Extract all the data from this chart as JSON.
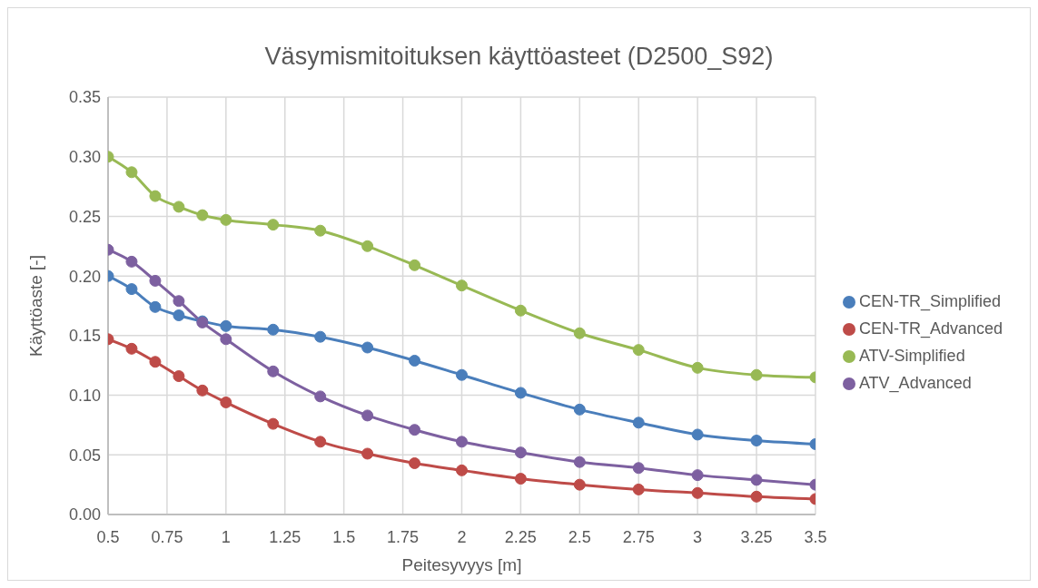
{
  "chart_data": {
    "type": "line",
    "title": "Väsymismitoituksen käyttöasteet (D2500_S92)",
    "xlabel": "Peitesyvyys [m]",
    "ylabel": "Käyttöaste [-]",
    "x": [
      0.5,
      0.6,
      0.7,
      0.8,
      0.9,
      1,
      1.2,
      1.4,
      1.6,
      1.8,
      2,
      2.25,
      2.5,
      2.75,
      3,
      3.25,
      3.5
    ],
    "series": [
      {
        "name": "CEN-TR_Simplified",
        "color": "#4a7ebb",
        "values": [
          0.2,
          0.189,
          0.174,
          0.167,
          0.162,
          0.158,
          0.155,
          0.149,
          0.14,
          0.129,
          0.117,
          0.102,
          0.088,
          0.077,
          0.067,
          0.062,
          0.059
        ]
      },
      {
        "name": "CEN-TR_Advanced",
        "color": "#be4b48",
        "values": [
          0.147,
          0.139,
          0.128,
          0.116,
          0.104,
          0.094,
          0.076,
          0.061,
          0.051,
          0.043,
          0.037,
          0.03,
          0.025,
          0.021,
          0.018,
          0.015,
          0.013
        ]
      },
      {
        "name": "ATV-Simplified",
        "color": "#98b954",
        "values": [
          0.3,
          0.287,
          0.267,
          0.258,
          0.251,
          0.247,
          0.243,
          0.238,
          0.225,
          0.209,
          0.192,
          0.171,
          0.152,
          0.138,
          0.123,
          0.117,
          0.115
        ]
      },
      {
        "name": "ATV_Advanced",
        "color": "#7d60a0",
        "values": [
          0.222,
          0.212,
          0.196,
          0.179,
          0.161,
          0.147,
          0.12,
          0.099,
          0.083,
          0.071,
          0.061,
          0.052,
          0.044,
          0.039,
          0.033,
          0.029,
          0.025
        ]
      }
    ],
    "xlim": [
      0.5,
      3.5
    ],
    "xticks": [
      0.5,
      0.75,
      1,
      1.25,
      1.5,
      1.75,
      2,
      2.25,
      2.5,
      2.75,
      3,
      3.25,
      3.5
    ],
    "ylim": [
      0,
      0.35
    ],
    "yticks": [
      {
        "value": 0,
        "label": "0.00"
      },
      {
        "value": 0.05,
        "label": "0.05"
      },
      {
        "value": 0.1,
        "label": "0.10"
      },
      {
        "value": 0.15,
        "label": "0.15"
      },
      {
        "value": 0.2,
        "label": "0.20"
      },
      {
        "value": 0.25,
        "label": "0.25"
      },
      {
        "value": 0.3,
        "label": "0.30"
      },
      {
        "value": 0.35,
        "label": "0.35"
      }
    ],
    "grid": true,
    "legend": "right",
    "marker": "circle",
    "line_style": "solid"
  }
}
